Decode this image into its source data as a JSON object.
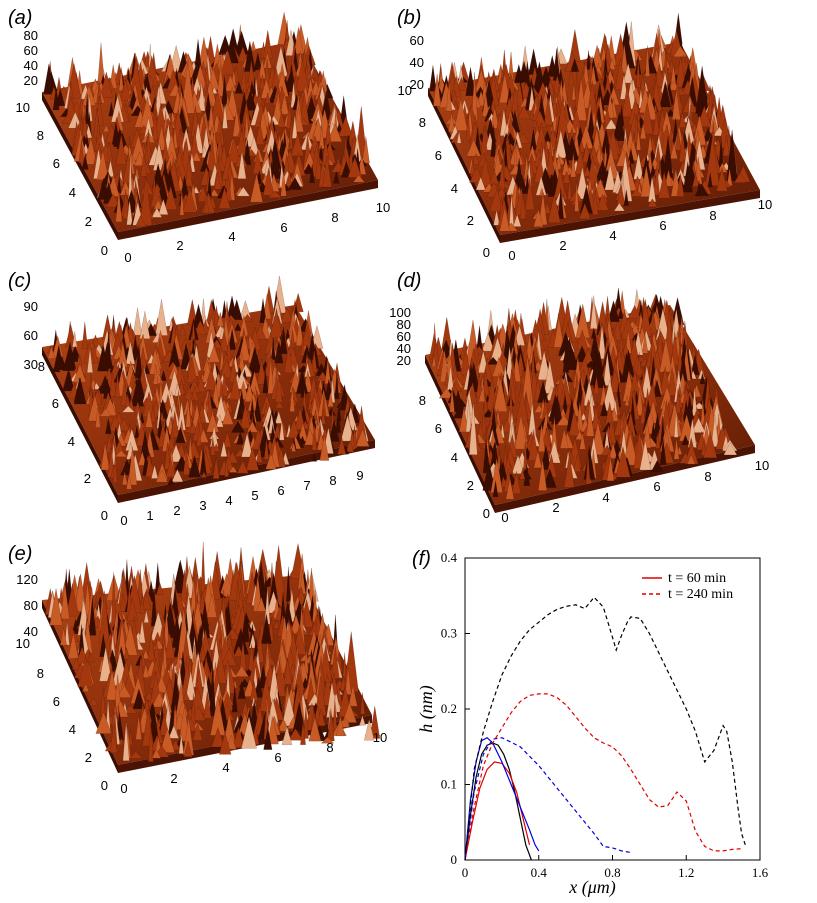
{
  "chart_data": [
    {
      "type": "surface",
      "panel_label": "(a)",
      "x_ticks": [
        "0",
        "2",
        "4",
        "6",
        "8",
        "10"
      ],
      "y_ticks": [
        "0",
        "2",
        "4",
        "6",
        "8",
        "10"
      ],
      "z_ticks": [
        "20",
        "40",
        "60",
        "80"
      ],
      "colors": {
        "dark": "#3a0d02",
        "mid": "#a3380f",
        "light": "#e9b08c"
      }
    },
    {
      "type": "surface",
      "panel_label": "(b)",
      "x_ticks": [
        "0",
        "2",
        "4",
        "6",
        "8",
        "10"
      ],
      "y_ticks": [
        "0",
        "2",
        "4",
        "6",
        "8",
        "10"
      ],
      "z_ticks": [
        "20",
        "40",
        "60"
      ],
      "colors": {
        "dark": "#3a0d02",
        "mid": "#a3380f",
        "light": "#e9b08c"
      }
    },
    {
      "type": "surface",
      "panel_label": "(c)",
      "x_ticks": [
        "0",
        "1",
        "2",
        "3",
        "4",
        "5",
        "6",
        "7",
        "8",
        "9"
      ],
      "y_ticks": [
        "0",
        "2",
        "4",
        "6",
        "8"
      ],
      "z_ticks": [
        "30",
        "60",
        "90"
      ],
      "colors": {
        "dark": "#3a0d02",
        "mid": "#a3380f",
        "light": "#e9b08c"
      }
    },
    {
      "type": "surface",
      "panel_label": "(d)",
      "x_ticks": [
        "0",
        "2",
        "4",
        "6",
        "8",
        "10"
      ],
      "y_ticks": [
        "0",
        "2",
        "4",
        "6",
        "8"
      ],
      "z_ticks": [
        "20",
        "40",
        "60",
        "80",
        "100"
      ],
      "colors": {
        "dark": "#3a0d02",
        "mid": "#a3380f",
        "light": "#e9b08c"
      }
    },
    {
      "type": "surface",
      "panel_label": "(e)",
      "x_ticks": [
        "0",
        "2",
        "4",
        "6",
        "8",
        "10"
      ],
      "y_ticks": [
        "0",
        "2",
        "4",
        "6",
        "8",
        "10"
      ],
      "z_ticks": [
        "40",
        "80",
        "120"
      ],
      "colors": {
        "dark": "#3a0d02",
        "mid": "#a3380f",
        "light": "#e9b08c"
      }
    },
    {
      "type": "line",
      "panel_label": "(f)",
      "xlabel": "x (μm)",
      "ylabel": "h (nm)",
      "xlim": [
        0,
        1.6
      ],
      "ylim": [
        0,
        0.4
      ],
      "x_ticks": [
        "0",
        "0.4",
        "0.8",
        "1.2",
        "1.6"
      ],
      "y_ticks": [
        "0",
        "0.1",
        "0.2",
        "0.3",
        "0.4"
      ],
      "legend": {
        "position": "top-right",
        "entries": [
          {
            "label": "t = 60 min",
            "color": "#e00000",
            "dash": "solid"
          },
          {
            "label": "t = 240 min",
            "color": "#e00000",
            "dash": "dashed"
          }
        ]
      },
      "series": [
        {
          "color": "#000000",
          "dash": "solid",
          "x": [
            0,
            0.03,
            0.06,
            0.09,
            0.12,
            0.15,
            0.18,
            0.21,
            0.24,
            0.27,
            0.3,
            0.33,
            0.36
          ],
          "y": [
            0,
            0.06,
            0.11,
            0.14,
            0.152,
            0.155,
            0.152,
            0.14,
            0.12,
            0.09,
            0.055,
            0.02,
            0
          ]
        },
        {
          "color": "#e00000",
          "dash": "solid",
          "x": [
            0,
            0.04,
            0.08,
            0.12,
            0.16,
            0.2,
            0.24,
            0.28,
            0.32,
            0.35
          ],
          "y": [
            0,
            0.05,
            0.095,
            0.12,
            0.13,
            0.128,
            0.115,
            0.09,
            0.05,
            0.02
          ]
        },
        {
          "color": "#0000e0",
          "dash": "solid",
          "x": [
            0,
            0.03,
            0.06,
            0.09,
            0.12,
            0.15,
            0.2,
            0.25,
            0.3,
            0.35,
            0.38,
            0.4
          ],
          "y": [
            0,
            0.08,
            0.13,
            0.158,
            0.162,
            0.155,
            0.13,
            0.1,
            0.07,
            0.04,
            0.02,
            0.012
          ]
        },
        {
          "color": "#0000e0",
          "dash": "dashed",
          "x": [
            0,
            0.05,
            0.1,
            0.15,
            0.2,
            0.3,
            0.4,
            0.5,
            0.6,
            0.7,
            0.75,
            0.8,
            0.85,
            0.9
          ],
          "y": [
            0,
            0.09,
            0.14,
            0.16,
            0.162,
            0.15,
            0.125,
            0.095,
            0.065,
            0.035,
            0.018,
            0.016,
            0.012,
            0.01
          ]
        },
        {
          "color": "#e00000",
          "dash": "dashed",
          "x": [
            0,
            0.05,
            0.1,
            0.15,
            0.2,
            0.25,
            0.3,
            0.35,
            0.4,
            0.45,
            0.5,
            0.55,
            0.6,
            0.65,
            0.7,
            0.75,
            0.8,
            0.85,
            0.9,
            0.95,
            1.0,
            1.05,
            1.1,
            1.15,
            1.2,
            1.25,
            1.3,
            1.35,
            1.4,
            1.45,
            1.5
          ],
          "y": [
            0,
            0.07,
            0.125,
            0.155,
            0.175,
            0.195,
            0.21,
            0.218,
            0.22,
            0.22,
            0.215,
            0.205,
            0.19,
            0.175,
            0.162,
            0.155,
            0.15,
            0.138,
            0.12,
            0.1,
            0.08,
            0.07,
            0.072,
            0.09,
            0.078,
            0.038,
            0.018,
            0.012,
            0.012,
            0.014,
            0.015
          ]
        },
        {
          "color": "#000000",
          "dash": "dashed",
          "x": [
            0,
            0.05,
            0.1,
            0.15,
            0.2,
            0.25,
            0.3,
            0.35,
            0.4,
            0.45,
            0.5,
            0.55,
            0.6,
            0.65,
            0.7,
            0.75,
            0.8,
            0.82,
            0.85,
            0.88,
            0.9,
            0.95,
            1.0,
            1.05,
            1.1,
            1.15,
            1.2,
            1.25,
            1.3,
            1.35,
            1.4,
            1.42,
            1.45,
            1.48,
            1.5,
            1.52
          ],
          "y": [
            0,
            0.12,
            0.17,
            0.21,
            0.245,
            0.27,
            0.29,
            0.305,
            0.315,
            0.325,
            0.332,
            0.336,
            0.338,
            0.333,
            0.348,
            0.335,
            0.295,
            0.278,
            0.298,
            0.315,
            0.322,
            0.32,
            0.3,
            0.275,
            0.25,
            0.225,
            0.2,
            0.17,
            0.13,
            0.145,
            0.178,
            0.17,
            0.13,
            0.07,
            0.035,
            0.02
          ]
        }
      ]
    }
  ]
}
